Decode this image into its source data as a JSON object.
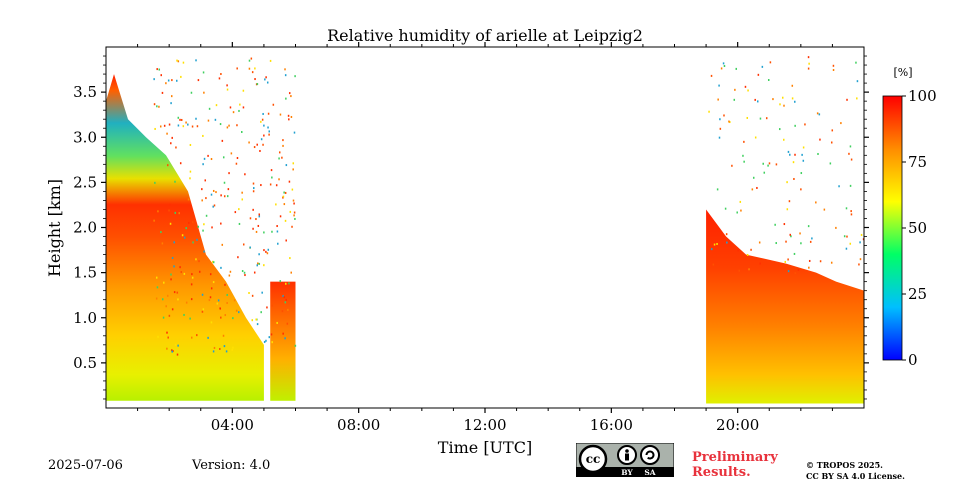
{
  "chart_data": {
    "type": "heatmap",
    "title": "Relative humidity of arielle at Leipzig2",
    "xlabel": "Time [UTC]",
    "ylabel": "Height [km]",
    "x_tick_labels": [
      "04:00",
      "08:00",
      "12:00",
      "16:00",
      "20:00"
    ],
    "x_ticks_hours": [
      4,
      8,
      12,
      16,
      20
    ],
    "xlim_hours": [
      0,
      24
    ],
    "y_tick_labels": [
      "0.5",
      "1.0",
      "1.5",
      "2.0",
      "2.5",
      "3.0",
      "3.5"
    ],
    "y_ticks": [
      0.5,
      1.0,
      1.5,
      2.0,
      2.5,
      3.0,
      3.5
    ],
    "ylim": [
      0,
      4.0
    ],
    "colorbar": {
      "unit_label": "[%]",
      "range": [
        0,
        100
      ],
      "tick_labels": [
        "0",
        "25",
        "50",
        "75",
        "100"
      ],
      "ticks": [
        0,
        25,
        50,
        75,
        100
      ],
      "colormap": [
        "#0000ff",
        "#00bfff",
        "#00ff66",
        "#ffff00",
        "#ff8c00",
        "#ff0000"
      ]
    },
    "data_segments": [
      {
        "start_hour": 0.0,
        "end_hour": 5.0,
        "base_km": 0.08,
        "top_km": 3.7
      },
      {
        "start_hour": 5.2,
        "end_hour": 6.0,
        "base_km": 0.08,
        "top_km": 1.4
      },
      {
        "start_hour": 19.0,
        "end_hour": 24.0,
        "base_km": 0.05,
        "top_km": 2.2
      }
    ]
  },
  "footer": {
    "date": "2025-07-06",
    "version": "Version: 4.0",
    "preliminary_line1": "Preliminary",
    "preliminary_line2": "Results.",
    "copyright_line1": "© TROPOS 2025.",
    "copyright_line2": "CC BY SA 4.0 License.",
    "cc_logo_text": "cc",
    "cc_by": "BY",
    "cc_sa": "SA"
  }
}
